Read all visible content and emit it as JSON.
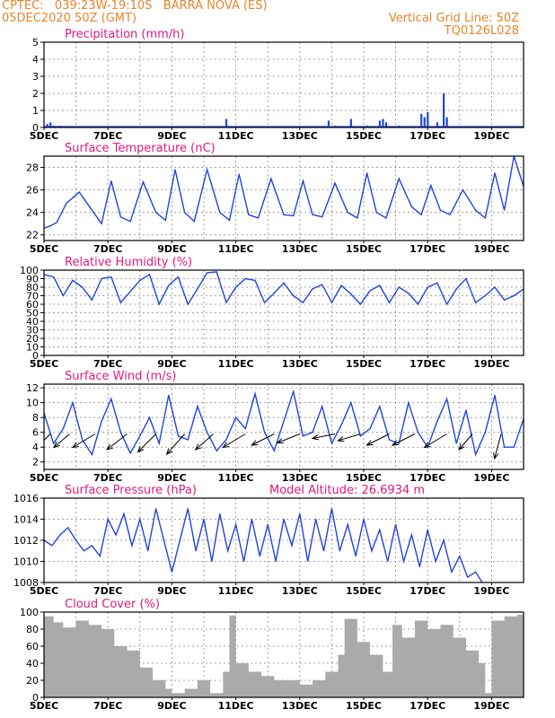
{
  "header": {
    "line1_left": "CPTEC:   039:23W-19:10S   BARRA NOVA (ES)",
    "line2_left": "05DEC2020 50Z (GMT)",
    "line1_right": "Vertical Grid Line: 50Z",
    "line2_right": "TQ0126L028"
  },
  "colors": {
    "header": "#e8842a",
    "title": "#e0197d",
    "series": "#2244dd",
    "cloud": "#aaaaaa",
    "grid": "#888888",
    "frame": "#000000",
    "vector": "#000000"
  },
  "x_axis": {
    "range_days": [
      5.0,
      20.0
    ],
    "ticks": [
      {
        "day": 5,
        "label": "5DEC"
      },
      {
        "day": 7,
        "label": "7DEC"
      },
      {
        "day": 9,
        "label": "9DEC"
      },
      {
        "day": 11,
        "label": "11DEC"
      },
      {
        "day": 13,
        "label": "13DEC"
      },
      {
        "day": 15,
        "label": "15DEC"
      },
      {
        "day": 17,
        "label": "17DEC"
      },
      {
        "day": 19,
        "label": "19DEC"
      }
    ],
    "grid_every_day": true
  },
  "chart_data": [
    {
      "type": "bar",
      "title": "Precipitation (mm/h)",
      "ylim": [
        0,
        5
      ],
      "yticks": [
        0,
        1,
        2,
        3,
        4,
        5
      ],
      "x": [
        5.1,
        5.2,
        5.3,
        5.5,
        10.7,
        13.9,
        14.1,
        14.6,
        15.1,
        15.5,
        15.6,
        15.7,
        16.1,
        16.8,
        16.9,
        17.0,
        17.3,
        17.5,
        17.6
      ],
      "values": [
        0.2,
        0.3,
        0.1,
        0.1,
        0.5,
        0.4,
        0.1,
        0.5,
        0.1,
        0.4,
        0.5,
        0.3,
        0.1,
        0.8,
        0.6,
        0.9,
        0.3,
        2.0,
        0.6
      ]
    },
    {
      "type": "line",
      "title": "Surface Temperature (nC)",
      "ylim": [
        21.5,
        29
      ],
      "yticks": [
        22,
        24,
        26,
        28
      ],
      "x": [
        5.0,
        5.2,
        5.4,
        5.7,
        6.1,
        6.5,
        6.8,
        7.1,
        7.4,
        7.7,
        8.1,
        8.5,
        8.8,
        9.1,
        9.4,
        9.7,
        10.1,
        10.5,
        10.8,
        11.1,
        11.4,
        11.7,
        12.1,
        12.5,
        12.8,
        13.1,
        13.4,
        13.7,
        14.1,
        14.5,
        14.8,
        15.1,
        15.4,
        15.7,
        16.1,
        16.5,
        16.8,
        17.1,
        17.4,
        17.7,
        18.1,
        18.5,
        18.8,
        19.1,
        19.4,
        19.7,
        20.0
      ],
      "values": [
        22.6,
        22.8,
        23.1,
        24.8,
        25.8,
        24.2,
        23.0,
        26.8,
        23.6,
        23.2,
        26.7,
        24.0,
        23.3,
        27.8,
        24.0,
        23.2,
        27.8,
        24.0,
        23.3,
        27.4,
        23.8,
        23.5,
        27.0,
        23.8,
        23.7,
        26.8,
        23.8,
        23.6,
        26.6,
        24.0,
        23.5,
        27.5,
        24.0,
        23.5,
        27.0,
        24.5,
        23.8,
        26.4,
        24.2,
        23.8,
        26.0,
        24.2,
        23.5,
        27.5,
        24.2,
        29.0,
        26.3
      ]
    },
    {
      "type": "line",
      "title": "Relative Humidity (%)",
      "ylim": [
        0,
        100
      ],
      "yticks": [
        0,
        10,
        20,
        30,
        40,
        50,
        60,
        70,
        80,
        90,
        100
      ],
      "x": [
        5.0,
        5.3,
        5.6,
        5.9,
        6.2,
        6.5,
        6.8,
        7.1,
        7.4,
        7.7,
        8.0,
        8.3,
        8.6,
        8.9,
        9.2,
        9.5,
        9.8,
        10.1,
        10.4,
        10.7,
        11.0,
        11.3,
        11.6,
        11.9,
        12.2,
        12.5,
        12.8,
        13.1,
        13.4,
        13.7,
        14.0,
        14.3,
        14.6,
        14.9,
        15.2,
        15.5,
        15.8,
        16.1,
        16.4,
        16.7,
        17.0,
        17.3,
        17.6,
        17.9,
        18.2,
        18.5,
        18.8,
        19.1,
        19.4,
        19.7,
        20.0
      ],
      "values": [
        95,
        92,
        70,
        88,
        80,
        65,
        90,
        92,
        62,
        75,
        88,
        95,
        60,
        82,
        92,
        60,
        78,
        97,
        98,
        62,
        80,
        90,
        88,
        62,
        73,
        85,
        70,
        62,
        78,
        83,
        62,
        82,
        72,
        60,
        76,
        82,
        62,
        80,
        73,
        60,
        80,
        85,
        60,
        78,
        90,
        62,
        70,
        80,
        65,
        70,
        78
      ]
    },
    {
      "type": "line",
      "title": "Surface Wind (m/s)",
      "ylim": [
        1,
        12.5
      ],
      "yticks": [
        2,
        4,
        6,
        8,
        10,
        12
      ],
      "x": [
        5.0,
        5.3,
        5.6,
        5.9,
        6.2,
        6.5,
        6.8,
        7.1,
        7.4,
        7.7,
        8.0,
        8.3,
        8.6,
        8.9,
        9.2,
        9.5,
        9.8,
        10.1,
        10.4,
        10.7,
        11.0,
        11.3,
        11.6,
        11.9,
        12.2,
        12.5,
        12.8,
        13.1,
        13.4,
        13.7,
        14.0,
        14.3,
        14.6,
        14.9,
        15.2,
        15.5,
        15.8,
        16.1,
        16.4,
        16.7,
        17.0,
        17.3,
        17.6,
        17.9,
        18.2,
        18.5,
        18.8,
        19.1,
        19.4,
        19.7,
        20.0
      ],
      "values": [
        8.6,
        4.5,
        6.5,
        10.0,
        5.0,
        3.0,
        7.5,
        10.5,
        6.0,
        3.2,
        5.5,
        8.0,
        4.5,
        11.0,
        5.5,
        5.0,
        9.5,
        6.0,
        3.5,
        5.0,
        8.0,
        6.5,
        11.2,
        6.0,
        3.5,
        7.5,
        11.5,
        5.5,
        6.0,
        9.5,
        4.5,
        7.0,
        10.0,
        5.5,
        6.5,
        9.5,
        5.0,
        4.5,
        10.0,
        6.0,
        4.0,
        7.5,
        10.5,
        4.5,
        9.0,
        3.0,
        6.0,
        11.0,
        4.0,
        4.0,
        7.8
      ],
      "vectors": {
        "x": [
          5.2,
          5.8,
          6.6,
          7.6,
          8.5,
          9.4,
          10.3,
          11.3,
          12.2,
          13.0,
          14.1,
          14.9,
          15.8,
          16.6,
          17.6,
          18.4,
          19.3
        ],
        "u": [
          -3,
          -3.5,
          -5,
          -4.5,
          -4,
          -4,
          -4,
          -5,
          -5,
          -5,
          -5,
          -5,
          -5,
          -5,
          -5,
          -3,
          -1.5
        ],
        "v": [
          -3,
          -3,
          -3,
          -3.5,
          -4,
          -4.5,
          -3.5,
          -3,
          -2.5,
          -2,
          -1,
          -1.5,
          -2.5,
          -2.5,
          -3,
          -3.5,
          -5.5
        ]
      }
    },
    {
      "type": "line",
      "title": "Surface Pressure (hPa)",
      "annotation": "Model Altitude: 26.6934 m",
      "ylim": [
        1008,
        1016
      ],
      "yticks": [
        1008,
        1010,
        1012,
        1014,
        1016
      ],
      "x": [
        5.0,
        5.25,
        5.5,
        5.75,
        6.0,
        6.25,
        6.5,
        6.75,
        7.0,
        7.25,
        7.5,
        7.75,
        8.0,
        8.25,
        8.5,
        8.75,
        9.0,
        9.25,
        9.5,
        9.75,
        10.0,
        10.25,
        10.5,
        10.75,
        11.0,
        11.25,
        11.5,
        11.75,
        12.0,
        12.25,
        12.5,
        12.75,
        13.0,
        13.25,
        13.5,
        13.75,
        14.0,
        14.25,
        14.5,
        14.75,
        15.0,
        15.25,
        15.5,
        15.75,
        16.0,
        16.25,
        16.5,
        16.75,
        17.0,
        17.25,
        17.5,
        17.75,
        18.0,
        18.25,
        18.5,
        18.75
      ],
      "values": [
        1012.0,
        1011.5,
        1012.5,
        1013.2,
        1012.0,
        1011.0,
        1011.5,
        1010.5,
        1014.0,
        1012.5,
        1014.5,
        1011.5,
        1014.0,
        1011.0,
        1015.0,
        1012.0,
        1009.0,
        1012.0,
        1015.0,
        1011.0,
        1014.0,
        1010.0,
        1014.5,
        1011.0,
        1013.5,
        1010.0,
        1014.0,
        1010.5,
        1013.5,
        1010.0,
        1014.0,
        1011.5,
        1014.5,
        1010.0,
        1014.0,
        1011.0,
        1015.0,
        1011.0,
        1013.5,
        1010.5,
        1014.0,
        1011.0,
        1013.0,
        1010.0,
        1013.5,
        1010.0,
        1012.5,
        1009.5,
        1013.0,
        1010.0,
        1012.0,
        1009.0,
        1010.5,
        1008.5,
        1009.0,
        1007.8
      ]
    },
    {
      "type": "area",
      "title": "Cloud Cover (%)",
      "ylim": [
        0,
        100
      ],
      "yticks": [
        0,
        20,
        40,
        60,
        80,
        100
      ],
      "x": [
        5.0,
        5.3,
        5.6,
        6.0,
        6.4,
        6.8,
        7.2,
        7.6,
        8.0,
        8.4,
        8.8,
        9.0,
        9.4,
        9.8,
        10.2,
        10.6,
        10.8,
        11.0,
        11.4,
        11.8,
        12.2,
        12.6,
        13.0,
        13.4,
        13.8,
        14.2,
        14.4,
        14.8,
        15.2,
        15.6,
        15.9,
        16.2,
        16.6,
        17.0,
        17.4,
        17.8,
        18.2,
        18.6,
        18.8,
        19.0,
        19.4,
        19.8,
        20.0
      ],
      "values": [
        95,
        88,
        82,
        90,
        85,
        80,
        60,
        55,
        35,
        20,
        10,
        5,
        10,
        20,
        5,
        30,
        96,
        40,
        30,
        25,
        20,
        20,
        15,
        20,
        30,
        50,
        92,
        65,
        50,
        30,
        85,
        70,
        90,
        80,
        85,
        70,
        55,
        40,
        5,
        90,
        95,
        97,
        98
      ]
    }
  ]
}
